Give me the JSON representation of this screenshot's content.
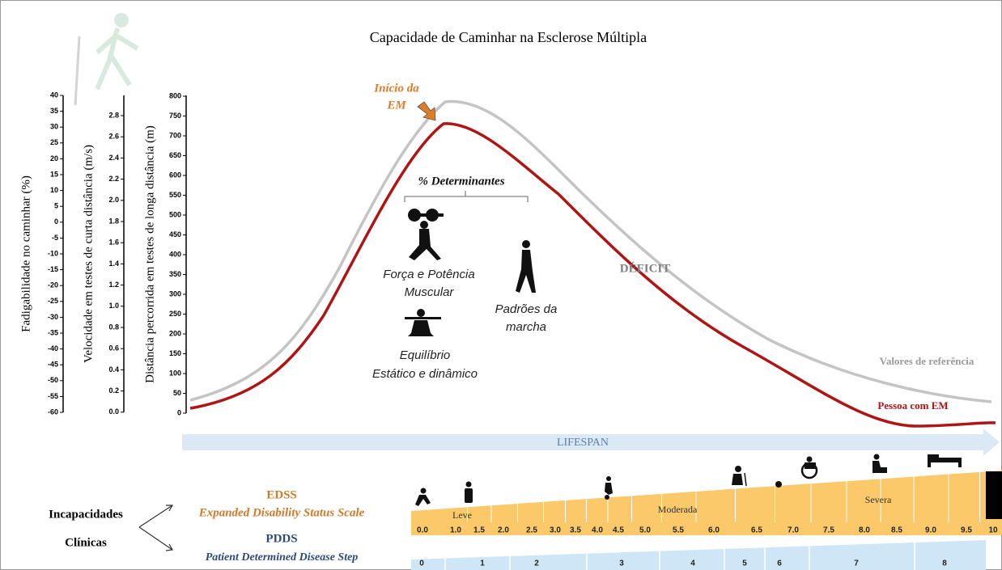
{
  "title": "Capacidade de Caminhar na Esclerose Múltipla",
  "axes": [
    {
      "label": "Fadigabilidade no caminhar (%)",
      "ticks": [
        "40",
        "35",
        "30",
        "25",
        "20",
        "15",
        "10",
        "5",
        "0",
        "-5",
        "-10",
        "-15",
        "-20",
        "-25",
        "-30",
        "-35",
        "-40",
        "-45",
        "-50",
        "-55",
        "-60"
      ]
    },
    {
      "label": "Velocidade em testes de curta distância (m/s)",
      "ticks": [
        "2.8",
        "2.6",
        "2.4",
        "2.2",
        "2.0",
        "1.8",
        "1.6",
        "1.4",
        "1.2",
        "1.0",
        "0.8",
        "0.6",
        "0.4",
        "0.2",
        "0.0"
      ]
    },
    {
      "label": "Distância percorrida em testes de longa distância (m)",
      "ticks": [
        "800",
        "750",
        "700",
        "650",
        "600",
        "550",
        "500",
        "450",
        "400",
        "350",
        "300",
        "250",
        "200",
        "150",
        "100",
        "50",
        "0"
      ]
    }
  ],
  "annotations": {
    "onset": [
      "Início da",
      "EM"
    ],
    "determinants": "% Determinantes",
    "strength": [
      "Força e Potência",
      "Muscular"
    ],
    "gait": [
      "Padrões da",
      "marcha"
    ],
    "balance": [
      "Equilíbrio",
      "Estático e dinâmico"
    ],
    "deficit": "DÉFICIT",
    "reference": "Valores de referência",
    "ms": "Pessoa com EM"
  },
  "lifespan": "LIFESPAN",
  "disability": [
    "Incapacidades",
    "Clínicas"
  ],
  "edss": {
    "name": "EDSS",
    "full": "Expanded Disability Status Scale",
    "levels": [
      "Leve",
      "Moderada",
      "Severa"
    ],
    "steps": [
      "0.0",
      "1.0",
      "1.5",
      "2.0",
      "2.5",
      "3.0",
      "3.5",
      "4.0",
      "4.5",
      "5.0",
      "5.5",
      "6.0",
      "6.5",
      "7.0",
      "7.5",
      "8.0",
      "8.5",
      "9.0",
      "9.5",
      "10"
    ]
  },
  "pdds": {
    "name": "PDDS",
    "full": "Patient Determined Disease Step",
    "steps": [
      "0",
      "1",
      "2",
      "3",
      "4",
      "5",
      "6",
      "7",
      "8"
    ]
  }
}
